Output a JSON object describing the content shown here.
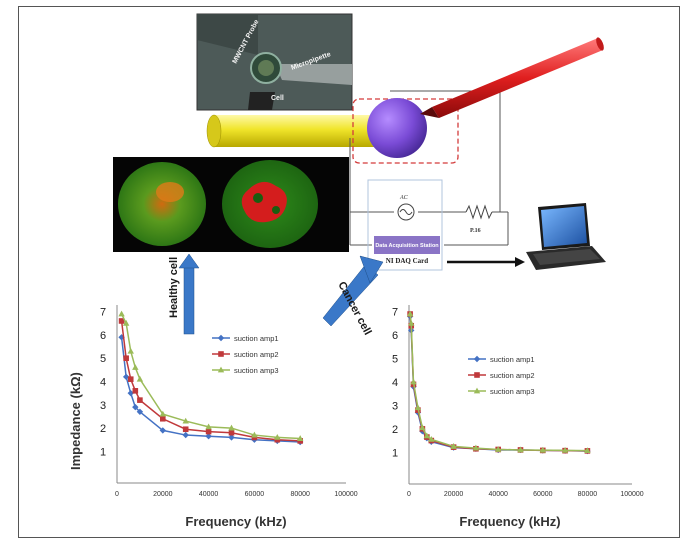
{
  "labels": {
    "daq_station": "Data Acquisition Station",
    "daq_card": "NI DAQ Card",
    "ac": "AC",
    "resistor": "P.16",
    "healthy": "Healthy cell",
    "cancer": "Cancer cell",
    "micro_cell": "Cell",
    "micro_pipette": "Micropipette",
    "micro_mwcnt": "MWCNT Probe"
  },
  "colors": {
    "s1": "#4472c4",
    "s2": "#c0393b",
    "s3": "#9bbb59",
    "cylinder": "#f0e52a",
    "sphere": "#7a4bd6",
    "pen": "#e01f1f"
  },
  "chart_data": [
    {
      "type": "line",
      "xlabel": "Frequency (kHz)",
      "ylabel": "Impedance (kΩ)",
      "xlim": [
        0,
        100000
      ],
      "ylim": [
        0.5,
        7.2
      ],
      "xticks": [
        0,
        20000,
        40000,
        60000,
        80000,
        100000
      ],
      "yticks": [
        1,
        2,
        3,
        4,
        5,
        6,
        7
      ],
      "legend_position": "top-right",
      "x": [
        2000,
        4000,
        6000,
        8000,
        10000,
        20000,
        30000,
        40000,
        50000,
        60000,
        70000,
        80000
      ],
      "series": [
        {
          "name": "suction amp1",
          "marker": "diamond",
          "values": [
            5.9,
            4.2,
            3.5,
            2.9,
            2.7,
            1.9,
            1.7,
            1.65,
            1.6,
            1.5,
            1.45,
            1.4
          ]
        },
        {
          "name": "suction amp2",
          "marker": "square",
          "values": [
            6.6,
            5.0,
            4.1,
            3.6,
            3.2,
            2.4,
            1.95,
            1.85,
            1.8,
            1.6,
            1.5,
            1.45
          ]
        },
        {
          "name": "suction amp3",
          "marker": "triangle",
          "values": [
            6.9,
            6.5,
            5.3,
            4.6,
            4.1,
            2.6,
            2.3,
            2.05,
            2.0,
            1.7,
            1.6,
            1.55
          ]
        }
      ]
    },
    {
      "type": "line",
      "xlabel": "Frequency (kHz)",
      "ylabel": "",
      "xlim": [
        0,
        100000
      ],
      "ylim": [
        0.5,
        7.2
      ],
      "xticks": [
        0,
        20000,
        40000,
        60000,
        80000,
        100000
      ],
      "yticks": [
        1,
        2,
        3,
        4,
        5,
        6,
        7
      ],
      "legend_position": "center-right",
      "x": [
        500,
        1000,
        2000,
        4000,
        6000,
        8000,
        10000,
        20000,
        30000,
        40000,
        50000,
        60000,
        70000,
        80000
      ],
      "series": [
        {
          "name": "suction amp1",
          "marker": "diamond",
          "values": [
            6.8,
            6.2,
            3.8,
            2.7,
            1.9,
            1.6,
            1.45,
            1.2,
            1.15,
            1.1,
            1.1,
            1.08,
            1.07,
            1.05
          ]
        },
        {
          "name": "suction amp2",
          "marker": "square",
          "values": [
            6.9,
            6.4,
            3.9,
            2.8,
            2.0,
            1.65,
            1.5,
            1.22,
            1.15,
            1.12,
            1.1,
            1.08,
            1.07,
            1.06
          ]
        },
        {
          "name": "suction amp3",
          "marker": "triangle",
          "values": [
            6.9,
            6.5,
            4.0,
            2.9,
            2.05,
            1.7,
            1.55,
            1.25,
            1.18,
            1.12,
            1.1,
            1.09,
            1.08,
            1.07
          ]
        }
      ]
    }
  ]
}
